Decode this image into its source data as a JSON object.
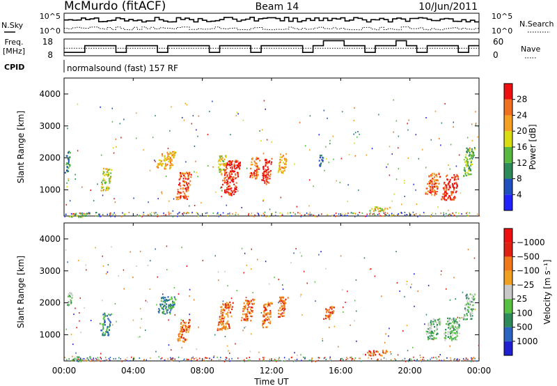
{
  "header": {
    "station": "McMurdo (fitACF)",
    "beam": "Beam 14",
    "date": "10/Jun/2011"
  },
  "summary": {
    "nsky_label": "N.Sky",
    "freq_label_1": "Freq.",
    "freq_label_2": "[MHz]",
    "cpid_label": "CPID",
    "nsearch_label": "N.Search",
    "nave_label": "Nave",
    "noise_ticks": [
      "10^5",
      "10^0"
    ],
    "freq_ticks": [
      "18",
      "8"
    ],
    "nave_ticks": [
      "60",
      "0"
    ],
    "cpid_text": "normalsound (fast) 157 RF"
  },
  "chart_data": [
    {
      "type": "heatmap",
      "name": "power",
      "ylabel": "Slant Range [km]",
      "y_ticks": [
        "1000",
        "2000",
        "3000",
        "4000"
      ],
      "ylim": [
        180,
        4500
      ],
      "xlim": [
        0,
        24
      ],
      "colorbar": {
        "label": "Power [dB]",
        "ticks": [
          "4",
          "8",
          "12",
          "16",
          "20",
          "24",
          "28"
        ],
        "colors": [
          "#2222ff",
          "#2050c0",
          "#2e8a58",
          "#58b840",
          "#d8dc10",
          "#f5a020",
          "#f07020",
          "#ee1010"
        ]
      },
      "patches": [
        {
          "t": 0.2,
          "r": 1900,
          "dt": 0.25,
          "dr": 700,
          "level": 2
        },
        {
          "t": 0.9,
          "r": 230,
          "dt": 1.0,
          "dr": 120,
          "level": 3
        },
        {
          "t": 2.4,
          "r": 1350,
          "dt": 0.5,
          "dr": 700,
          "level": 4
        },
        {
          "t": 5.9,
          "r": 1950,
          "dt": 0.9,
          "dr": 550,
          "level": 5
        },
        {
          "t": 6.9,
          "r": 1150,
          "dt": 0.7,
          "dr": 850,
          "level": 6
        },
        {
          "t": 9.1,
          "r": 1800,
          "dt": 0.45,
          "dr": 600,
          "level": 4
        },
        {
          "t": 9.6,
          "r": 1400,
          "dt": 0.9,
          "dr": 1100,
          "level": 7
        },
        {
          "t": 11.0,
          "r": 1700,
          "dt": 0.5,
          "dr": 700,
          "level": 6
        },
        {
          "t": 11.7,
          "r": 1600,
          "dt": 0.5,
          "dr": 800,
          "level": 7
        },
        {
          "t": 12.6,
          "r": 1850,
          "dt": 0.45,
          "dr": 600,
          "level": 5
        },
        {
          "t": 14.8,
          "r": 1900,
          "dt": 0.25,
          "dr": 400,
          "level": 1
        },
        {
          "t": 18.2,
          "r": 420,
          "dt": 1.0,
          "dr": 150,
          "level": 4
        },
        {
          "t": 21.3,
          "r": 1200,
          "dt": 0.7,
          "dr": 700,
          "level": 6
        },
        {
          "t": 22.3,
          "r": 1100,
          "dt": 0.8,
          "dr": 800,
          "level": 7
        },
        {
          "t": 23.4,
          "r": 1900,
          "dt": 0.5,
          "dr": 900,
          "level": 3
        }
      ]
    },
    {
      "type": "heatmap",
      "name": "velocity",
      "ylabel": "Slant Range [km]",
      "y_ticks": [
        "1000",
        "2000",
        "3000",
        "4000"
      ],
      "ylim": [
        180,
        4500
      ],
      "xlim": [
        0,
        24
      ],
      "xlabel": "Time UT",
      "x_ticks": [
        "00:00",
        "04:00",
        "08:00",
        "12:00",
        "16:00",
        "20:00",
        "00:00"
      ],
      "colorbar": {
        "label": "Velocity [m s⁻¹]",
        "ticks": [
          "1000",
          "500",
          "100",
          "25",
          "−25",
          "−100",
          "−500",
          "−1000"
        ],
        "colors": [
          "#2020d0",
          "#2a64c0",
          "#2e8a58",
          "#58c040",
          "#c8c8c8",
          "#f0a020",
          "#f07818",
          "#e02010",
          "#ee1010"
        ]
      },
      "patches": [
        {
          "t": 0.3,
          "r": 2100,
          "dt": 0.25,
          "dr": 500,
          "level": 3
        },
        {
          "t": 1.0,
          "r": 260,
          "dt": 1.0,
          "dr": 140,
          "level": 3
        },
        {
          "t": 2.4,
          "r": 1350,
          "dt": 0.5,
          "dr": 700,
          "level": 2
        },
        {
          "t": 5.9,
          "r": 1950,
          "dt": 0.9,
          "dr": 550,
          "level": 2
        },
        {
          "t": 6.9,
          "r": 1150,
          "dt": 0.6,
          "dr": 700,
          "level": 6
        },
        {
          "t": 9.3,
          "r": 1600,
          "dt": 0.7,
          "dr": 900,
          "level": 6
        },
        {
          "t": 10.6,
          "r": 1800,
          "dt": 0.6,
          "dr": 700,
          "level": 6
        },
        {
          "t": 11.7,
          "r": 1650,
          "dt": 0.5,
          "dr": 800,
          "level": 6
        },
        {
          "t": 12.6,
          "r": 1900,
          "dt": 0.5,
          "dr": 650,
          "level": 6
        },
        {
          "t": 15.3,
          "r": 1700,
          "dt": 0.5,
          "dr": 400,
          "level": 6
        },
        {
          "t": 18.0,
          "r": 450,
          "dt": 1.2,
          "dr": 160,
          "level": 6
        },
        {
          "t": 21.3,
          "r": 1200,
          "dt": 0.7,
          "dr": 650,
          "level": 3
        },
        {
          "t": 22.4,
          "r": 1200,
          "dt": 0.8,
          "dr": 700,
          "level": 3
        },
        {
          "t": 23.4,
          "r": 1900,
          "dt": 0.5,
          "dr": 800,
          "level": 3
        }
      ]
    }
  ]
}
